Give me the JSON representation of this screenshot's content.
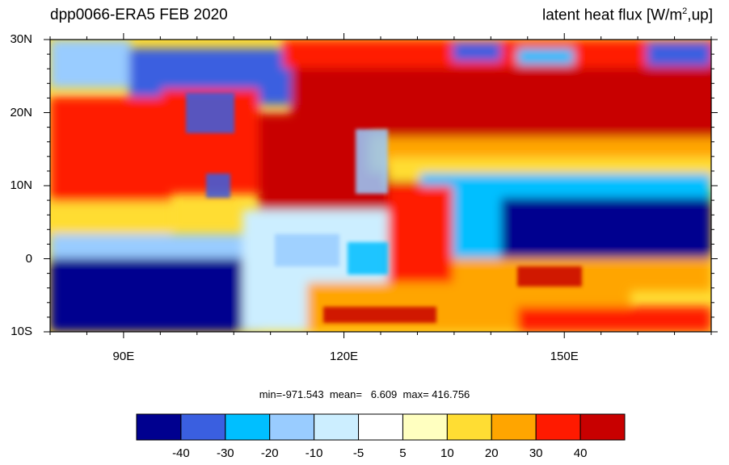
{
  "title": {
    "left": "dpp0066-ERA5  FEB 2020",
    "right_prefix": "latent heat flux [W/m",
    "right_sup": "2",
    "right_suffix": ",up]"
  },
  "map": {
    "lon_range": [
      80,
      170
    ],
    "lat_range": [
      -10,
      30
    ],
    "y_ticks": [
      {
        "label": "30N",
        "lat": 30
      },
      {
        "label": "20N",
        "lat": 20
      },
      {
        "label": "10N",
        "lat": 10
      },
      {
        "label": "0",
        "lat": 0
      },
      {
        "label": "10S",
        "lat": -10
      }
    ],
    "x_ticks": [
      {
        "label": "90E",
        "lon": 90
      },
      {
        "label": "120E",
        "lon": 120
      },
      {
        "label": "150E",
        "lon": 150
      }
    ]
  },
  "stats": {
    "min_label": "min=-971.543",
    "mean_label": "mean=   6.609",
    "max_label": "max= 416.756"
  },
  "colorbar": {
    "colors": [
      "#00008f",
      "#3a5fe0",
      "#00bfff",
      "#99ccff",
      "#cceeff",
      "#ffffff",
      "#ffffc0",
      "#ffdd33",
      "#ffa500",
      "#ff1a00",
      "#c80000"
    ],
    "labels": [
      "-40",
      "-30",
      "-20",
      "-10",
      "-5",
      "5",
      "10",
      "20",
      "30",
      "40"
    ]
  }
}
